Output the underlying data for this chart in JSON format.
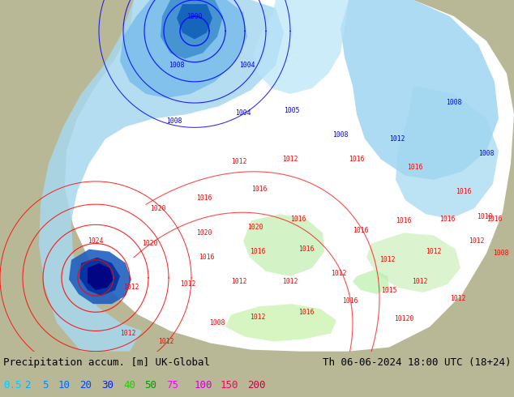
{
  "title_left": "Precipitation accum. [m] UK-Global",
  "title_right": "Th 06-06-2024 18:00 UTC (18+24)",
  "legend_values": [
    "0.5",
    "2",
    "5",
    "10",
    "20",
    "30",
    "40",
    "50",
    "75",
    "100",
    "150",
    "200"
  ],
  "legend_colors": [
    "#00d4ff",
    "#00b8ff",
    "#009fff",
    "#0077ff",
    "#0055ff",
    "#0033ff",
    "#00cc00",
    "#00aa00",
    "#ff00ff",
    "#cc00cc",
    "#ff0066",
    "#cc0044"
  ],
  "bg_color": "#b8b896",
  "land_color": "#b8b896",
  "sea_color": "#8ab0c8",
  "map_white": "#f0f0f0",
  "fig_width": 6.34,
  "fig_height": 4.9,
  "dpi": 100,
  "title_fontsize": 9.0,
  "legend_fontsize": 9.0,
  "label_fontsize": 5.8
}
